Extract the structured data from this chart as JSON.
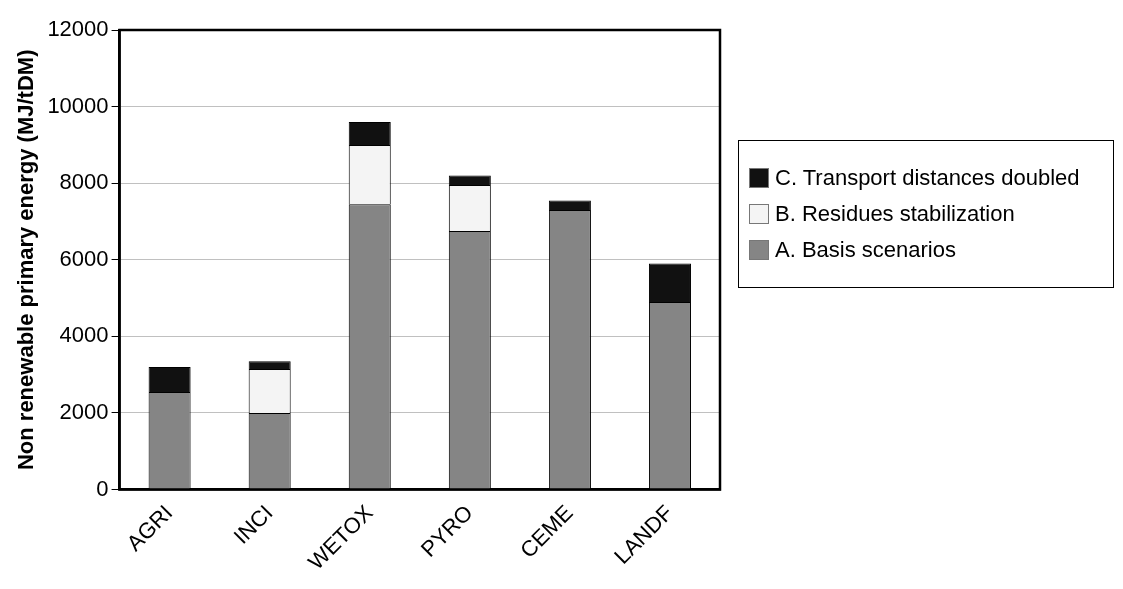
{
  "chart_data": {
    "type": "bar",
    "ylabel": "Non renewable primary energy (MJ/tDM)",
    "categories": [
      "AGRI",
      "INCI",
      "WETOX",
      "PYRO",
      "CEME",
      "LANDF"
    ],
    "stacked": true,
    "series": [
      {
        "name": "A. Basis scenarios",
        "color": "#858585",
        "values": [
          2550,
          2000,
          7450,
          6750,
          7300,
          4900
        ]
      },
      {
        "name": "B. Residues stabilization",
        "color": "#f4f4f4",
        "values": [
          0,
          1150,
          1550,
          1200,
          0,
          0
        ]
      },
      {
        "name": "C. Transport distances doubled",
        "color": "#111111",
        "values": [
          650,
          200,
          600,
          250,
          250,
          1000
        ]
      }
    ],
    "ylim": [
      0,
      12000
    ],
    "yticks": [
      0,
      2000,
      4000,
      6000,
      8000,
      10000,
      12000
    ],
    "grid": "y",
    "legend": "right"
  }
}
